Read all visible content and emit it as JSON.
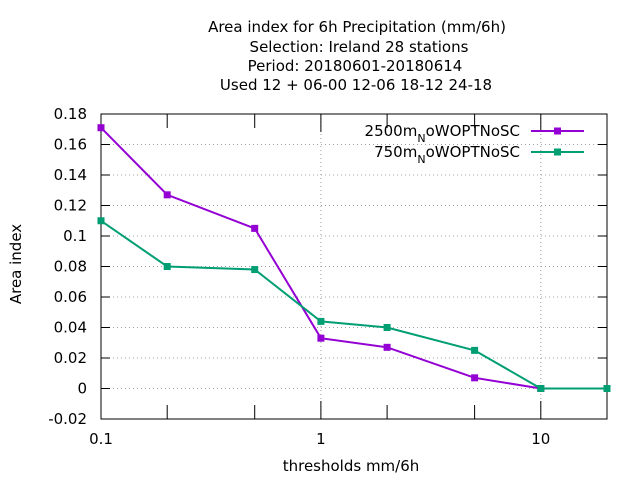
{
  "chart_data": {
    "type": "line",
    "title_lines": [
      "Area index  for 6h Precipitation (mm/6h)",
      "Selection: Ireland      28 stations",
      "Period: 20180601-20180614",
      "Used  12 + 06-00 12-06 18-12 24-18"
    ],
    "xlabel": "thresholds mm/6h",
    "ylabel": "Area index",
    "xscale": "log",
    "xlim": [
      0.1,
      20
    ],
    "ylim": [
      -0.02,
      0.18
    ],
    "xticks": [
      {
        "value": 0.1,
        "label": "0.1"
      },
      {
        "value": 1,
        "label": "1"
      },
      {
        "value": 10,
        "label": "10"
      }
    ],
    "xminor_ticks": [
      0.2,
      0.5,
      2,
      5,
      20
    ],
    "yticks": [
      {
        "value": -0.02,
        "label": "-0.02"
      },
      {
        "value": 0,
        "label": "0"
      },
      {
        "value": 0.02,
        "label": "0.02"
      },
      {
        "value": 0.04,
        "label": "0.04"
      },
      {
        "value": 0.06,
        "label": "0.06"
      },
      {
        "value": 0.08,
        "label": "0.08"
      },
      {
        "value": 0.1,
        "label": "0.1"
      },
      {
        "value": 0.12,
        "label": "0.12"
      },
      {
        "value": 0.14,
        "label": "0.14"
      },
      {
        "value": 0.16,
        "label": "0.16"
      },
      {
        "value": 0.18,
        "label": "0.18"
      }
    ],
    "grid": true,
    "legend_position": "top-right",
    "series": [
      {
        "name_main": "2500m",
        "name_sub": "N",
        "name_rest": "oWOPTNoSC",
        "color": "#9400d3",
        "x": [
          0.1,
          0.2,
          0.5,
          1,
          2,
          5,
          10,
          20
        ],
        "y": [
          0.171,
          0.127,
          0.105,
          0.033,
          0.027,
          0.007,
          0.0,
          0.0
        ]
      },
      {
        "name_main": "750m",
        "name_sub": "N",
        "name_rest": "oWOPTNoSC",
        "color": "#009e73",
        "x": [
          0.1,
          0.2,
          0.5,
          1,
          2,
          5,
          10,
          20
        ],
        "y": [
          0.11,
          0.08,
          0.078,
          0.044,
          0.04,
          0.025,
          0.0,
          0.0
        ]
      }
    ]
  }
}
